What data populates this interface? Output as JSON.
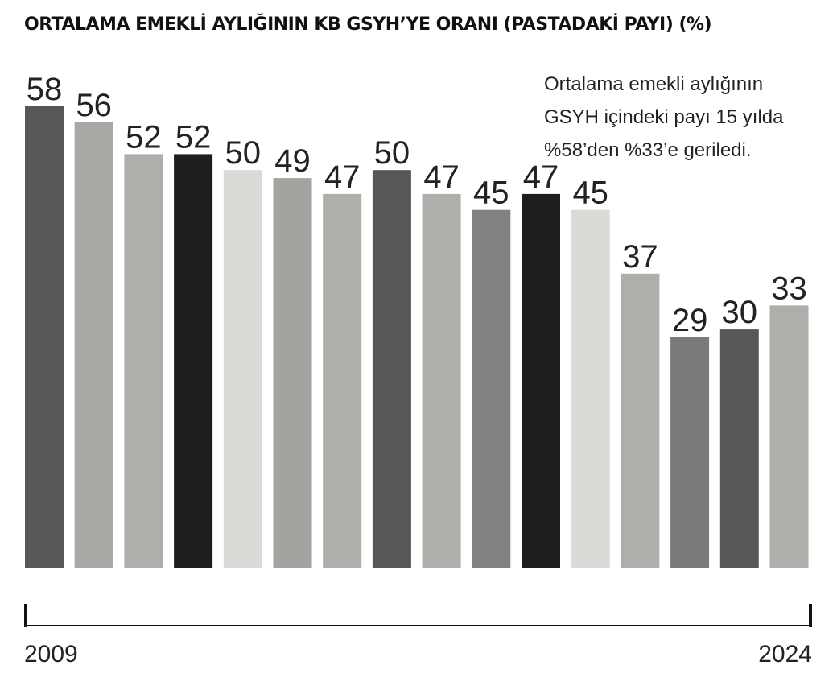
{
  "chart_data": {
    "type": "bar",
    "title": "ORTALAMA EMEKLİ AYLIĞININ KB GSYH’YE ORANI (PASTADAKİ PAYI)  (%)",
    "annotation": [
      "Ortalama emekli aylığının",
      "GSYH içindeki payı 15 yılda",
      "%58’den %33’e geriledi."
    ],
    "x_start_label": "2009",
    "x_end_label": "2024",
    "values": [
      58,
      56,
      52,
      52,
      50,
      49,
      47,
      50,
      47,
      45,
      47,
      45,
      37,
      29,
      30,
      33
    ],
    "bar_colors": [
      "#575756",
      "#a8a8a5",
      "#aeaeab",
      "#1e1e1e",
      "#dadad6",
      "#a3a3a0",
      "#aeaeab",
      "#575756",
      "#aeaeab",
      "#828281",
      "#1e1e1e",
      "#dadad6",
      "#aeaeab",
      "#7a7a78",
      "#575756",
      "#aeaeab"
    ],
    "ylim": [
      0,
      58
    ],
    "xlabel": "",
    "ylabel": ""
  }
}
